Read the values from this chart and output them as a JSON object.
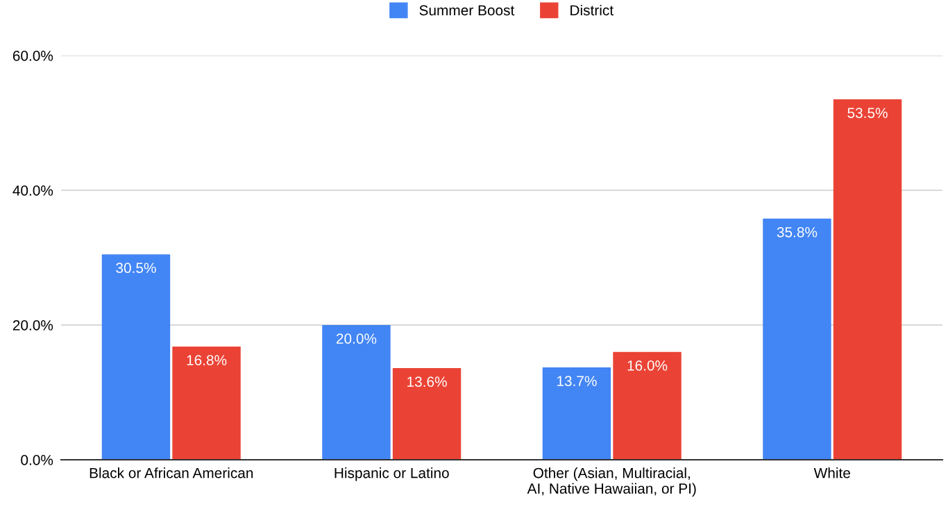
{
  "chart_data": {
    "type": "bar",
    "categories": [
      "Black or African American",
      "Hispanic or Latino",
      "Other (Asian, Multiracial,\nAI, Native Hawaiian, or PI)",
      "White"
    ],
    "series": [
      {
        "name": "Summer Boost",
        "color": "#4285f4",
        "values": [
          30.5,
          20.0,
          13.7,
          35.8
        ],
        "value_labels": [
          "30.5%",
          "20.0%",
          "13.7%",
          "35.8%"
        ]
      },
      {
        "name": "District",
        "color": "#ea4335",
        "values": [
          16.8,
          13.6,
          16.0,
          53.5
        ],
        "value_labels": [
          "16.8%",
          "13.6%",
          "16.0%",
          "53.5%"
        ]
      }
    ],
    "ylim": [
      0,
      60
    ],
    "yticks": [
      {
        "value": 0,
        "label": "0.0%"
      },
      {
        "value": 20,
        "label": "20.0%"
      },
      {
        "value": 40,
        "label": "40.0%"
      },
      {
        "value": 60,
        "label": "60.0%"
      }
    ],
    "grid": "y",
    "legend": "top"
  }
}
